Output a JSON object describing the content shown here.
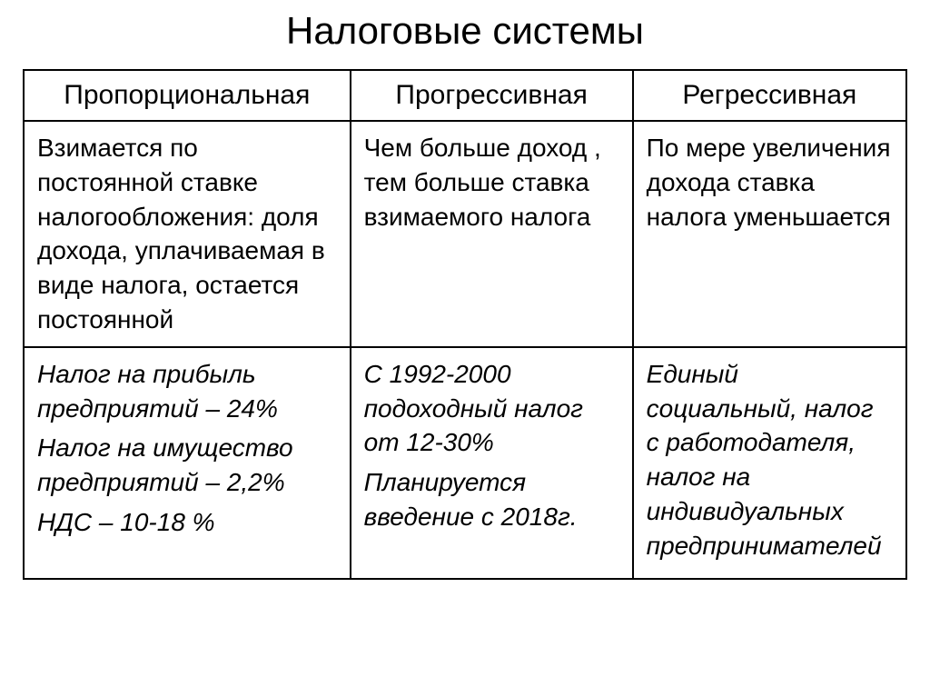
{
  "title": "Налоговые системы",
  "columns": {
    "col1": "Пропорциональная",
    "col2": "Прогрессивная",
    "col3": "Регрессивная"
  },
  "descriptions": {
    "col1": "Взимается по постоянной ставке налогообложения: доля дохода, уплачиваемая в виде налога, остается постоянной",
    "col2": "Чем больше доход , тем больше ставка взимаемого налога",
    "col3": "По мере увеличения дохода ставка налога уменьшается"
  },
  "examples": {
    "col1": {
      "line1": "Налог на прибыль предприятий – 24%",
      "line2": "Налог на имущество предприятий – 2,2%",
      "line3": "НДС – 10-18 %"
    },
    "col2": {
      "line1": "С 1992-2000 подоходный налог от 12-30%",
      "line2": "Планируется введение с 2018г."
    },
    "col3": {
      "line1": "Единый социальный, налог с работодателя, налог на индивидуальных предпринимателей"
    }
  },
  "styling": {
    "background_color": "#ffffff",
    "text_color": "#000000",
    "border_color": "#000000",
    "title_fontsize": 42,
    "header_fontsize": 30,
    "body_fontsize": 28,
    "example_fontsize": 27,
    "font_family": "Arial"
  }
}
